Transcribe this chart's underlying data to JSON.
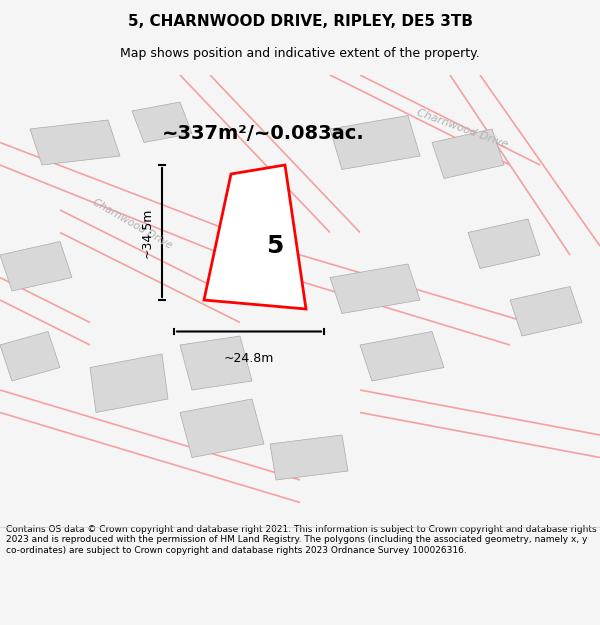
{
  "title": "5, CHARNWOOD DRIVE, RIPLEY, DE5 3TB",
  "subtitle": "Map shows position and indicative extent of the property.",
  "area_text": "~337m²/~0.083ac.",
  "street_label": "Charnwood Drive",
  "street_label_top_right": "Charnwood Drive",
  "property_number": "5",
  "dim_vertical": "~34.5m",
  "dim_horizontal": "~24.8m",
  "footer_text": "Contains OS data © Crown copyright and database right 2021. This information is subject to Crown copyright and database rights 2023 and is reproduced with the permission of HM Land Registry. The polygons (including the associated geometry, namely x, y co-ordinates) are subject to Crown copyright and database rights 2023 Ordnance Survey 100026316.",
  "bg_color": "#f5f5f5",
  "map_bg_color": "#ffffff",
  "road_color": "#f5a0a0",
  "building_color": "#d8d8d8",
  "property_fill": "#ffffff",
  "property_outline": "#ff0000",
  "title_color": "#000000",
  "text_color": "#000000",
  "footer_color": "#000000",
  "road_label_color": "#b0b0b0"
}
